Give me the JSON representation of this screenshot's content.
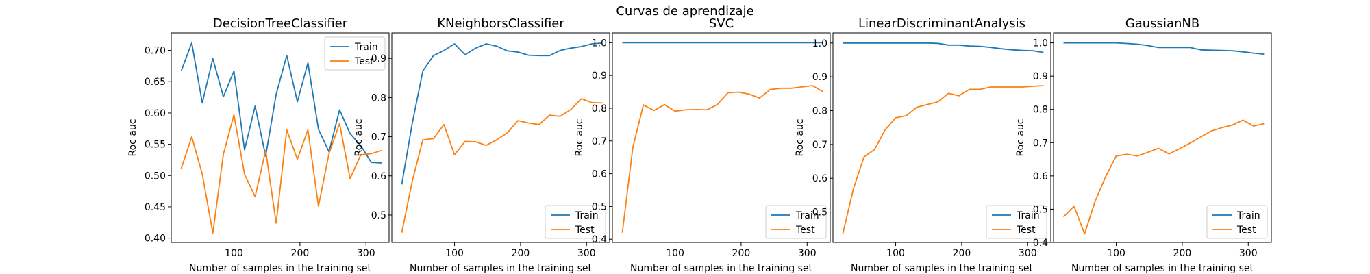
{
  "figure_title": "Curvas de aprendizaje",
  "chart_data": [
    {
      "type": "line",
      "title": "DecisionTreeClassifier",
      "xlabel": "Number of samples in the training set",
      "ylabel": "Roc auc",
      "xlim": [
        5,
        335
      ],
      "ylim": [
        0.393,
        0.728
      ],
      "xticks": [
        100,
        200,
        300
      ],
      "yticks": [
        0.4,
        0.45,
        0.5,
        0.55,
        0.6,
        0.65,
        0.7
      ],
      "ytick_labels": [
        "0.40",
        "0.45",
        "0.50",
        "0.55",
        "0.60",
        "0.65",
        "0.70"
      ],
      "legend": "upper right",
      "x": [
        20,
        36,
        52,
        68,
        84,
        100,
        116,
        132,
        148,
        164,
        180,
        196,
        212,
        228,
        244,
        260,
        276,
        292,
        308,
        324
      ],
      "series": [
        {
          "name": "Train",
          "color": "#1f77b4",
          "values": [
            0.667,
            0.712,
            0.616,
            0.687,
            0.626,
            0.667,
            0.541,
            0.611,
            0.531,
            0.63,
            0.692,
            0.618,
            0.68,
            0.574,
            0.538,
            0.605,
            0.567,
            0.548,
            0.521,
            0.52
          ]
        },
        {
          "name": "Test",
          "color": "#ff7f0e",
          "values": [
            0.511,
            0.562,
            0.502,
            0.408,
            0.534,
            0.597,
            0.502,
            0.466,
            0.54,
            0.424,
            0.573,
            0.526,
            0.573,
            0.451,
            0.535,
            0.583,
            0.495,
            0.533,
            0.535,
            0.54
          ]
        }
      ]
    },
    {
      "type": "line",
      "title": "KNeighborsClassifier",
      "xlabel": "Number of samples in the training set",
      "ylabel": "Roc auc",
      "xlim": [
        5,
        335
      ],
      "ylim": [
        0.43,
        0.965
      ],
      "xticks": [
        100,
        200,
        300
      ],
      "yticks": [
        0.5,
        0.6,
        0.7,
        0.8,
        0.9
      ],
      "ytick_labels": [
        "0.5",
        "0.6",
        "0.7",
        "0.8",
        "0.9"
      ],
      "legend": "lower right",
      "x": [
        20,
        36,
        52,
        68,
        84,
        100,
        116,
        132,
        148,
        164,
        180,
        196,
        212,
        228,
        244,
        260,
        276,
        292,
        308,
        324
      ],
      "series": [
        {
          "name": "Train",
          "color": "#1f77b4",
          "values": [
            0.578,
            0.735,
            0.868,
            0.907,
            0.92,
            0.937,
            0.909,
            0.926,
            0.937,
            0.931,
            0.919,
            0.916,
            0.908,
            0.907,
            0.907,
            0.92,
            0.926,
            0.93,
            0.937,
            0.939
          ]
        },
        {
          "name": "Test",
          "color": "#ff7f0e",
          "values": [
            0.455,
            0.587,
            0.692,
            0.695,
            0.731,
            0.654,
            0.688,
            0.687,
            0.678,
            0.692,
            0.71,
            0.741,
            0.735,
            0.731,
            0.755,
            0.752,
            0.769,
            0.797,
            0.787,
            0.786
          ]
        }
      ]
    },
    {
      "type": "line",
      "title": "SVC",
      "xlabel": "Number of samples in the training set",
      "ylabel": "Roc auc",
      "xlim": [
        5,
        335
      ],
      "ylim": [
        0.39,
        1.03
      ],
      "xticks": [
        100,
        200,
        300
      ],
      "yticks": [
        0.4,
        0.5,
        0.6,
        0.7,
        0.8,
        0.9,
        1.0
      ],
      "ytick_labels": [
        "0.4",
        "0.5",
        "0.6",
        "0.7",
        "0.8",
        "0.9",
        "1.0"
      ],
      "legend": "lower right",
      "x": [
        20,
        36,
        52,
        68,
        84,
        100,
        116,
        132,
        148,
        164,
        180,
        196,
        212,
        228,
        244,
        260,
        276,
        292,
        308,
        324
      ],
      "series": [
        {
          "name": "Train",
          "color": "#1f77b4",
          "values": [
            1.0,
            1.0,
            1.0,
            1.0,
            1.0,
            1.0,
            1.0,
            1.0,
            1.0,
            1.0,
            1.0,
            1.0,
            1.0,
            1.0,
            1.0,
            1.0,
            1.0,
            1.0,
            1.0,
            1.0
          ]
        },
        {
          "name": "Test",
          "color": "#ff7f0e",
          "values": [
            0.42,
            0.681,
            0.81,
            0.793,
            0.811,
            0.791,
            0.795,
            0.796,
            0.795,
            0.811,
            0.847,
            0.849,
            0.843,
            0.831,
            0.857,
            0.861,
            0.861,
            0.865,
            0.869,
            0.851
          ]
        }
      ]
    },
    {
      "type": "line",
      "title": "LinearDiscriminantAnalysis",
      "xlabel": "Number of samples in the training set",
      "ylabel": "Roc auc",
      "xlim": [
        5,
        335
      ],
      "ylim": [
        0.41,
        1.03
      ],
      "xticks": [
        100,
        200,
        300
      ],
      "yticks": [
        0.5,
        0.6,
        0.7,
        0.8,
        0.9,
        1.0
      ],
      "ytick_labels": [
        "0.5",
        "0.6",
        "0.7",
        "0.8",
        "0.9",
        "1.0"
      ],
      "legend": "lower right",
      "x": [
        20,
        36,
        52,
        68,
        84,
        100,
        116,
        132,
        148,
        164,
        180,
        196,
        212,
        228,
        244,
        260,
        276,
        292,
        308,
        324
      ],
      "series": [
        {
          "name": "Train",
          "color": "#1f77b4",
          "values": [
            1.0,
            1.0,
            1.0,
            1.0,
            1.0,
            1.0,
            1.0,
            1.0,
            1.0,
            0.999,
            0.994,
            0.994,
            0.991,
            0.99,
            0.987,
            0.983,
            0.98,
            0.978,
            0.977,
            0.972
          ]
        },
        {
          "name": "Test",
          "color": "#ff7f0e",
          "values": [
            0.437,
            0.569,
            0.663,
            0.685,
            0.743,
            0.779,
            0.785,
            0.81,
            0.818,
            0.826,
            0.851,
            0.844,
            0.863,
            0.863,
            0.87,
            0.87,
            0.87,
            0.87,
            0.872,
            0.874
          ]
        }
      ]
    },
    {
      "type": "line",
      "title": "GaussianNB",
      "xlabel": "Number of samples in the training set",
      "ylabel": "Roc auc",
      "xlim": [
        5,
        335
      ],
      "ylim": [
        0.4,
        1.03
      ],
      "xticks": [
        100,
        200,
        300
      ],
      "yticks": [
        0.4,
        0.5,
        0.6,
        0.7,
        0.8,
        0.9,
        1.0
      ],
      "ytick_labels": [
        "0.4",
        "0.5",
        "0.6",
        "0.7",
        "0.8",
        "0.9",
        "1.0"
      ],
      "legend": "lower right",
      "x": [
        20,
        36,
        52,
        68,
        84,
        100,
        116,
        132,
        148,
        164,
        180,
        196,
        212,
        228,
        244,
        260,
        276,
        292,
        308,
        324
      ],
      "series": [
        {
          "name": "Train",
          "color": "#1f77b4",
          "values": [
            1.0,
            1.0,
            1.0,
            1.0,
            1.0,
            1.0,
            0.998,
            0.996,
            0.992,
            0.986,
            0.986,
            0.986,
            0.986,
            0.979,
            0.978,
            0.977,
            0.976,
            0.973,
            0.969,
            0.966
          ]
        },
        {
          "name": "Test",
          "color": "#ff7f0e",
          "values": [
            0.477,
            0.509,
            0.426,
            0.524,
            0.598,
            0.66,
            0.665,
            0.66,
            0.671,
            0.683,
            0.666,
            0.682,
            0.699,
            0.717,
            0.735,
            0.745,
            0.753,
            0.768,
            0.75,
            0.757
          ]
        }
      ]
    }
  ]
}
